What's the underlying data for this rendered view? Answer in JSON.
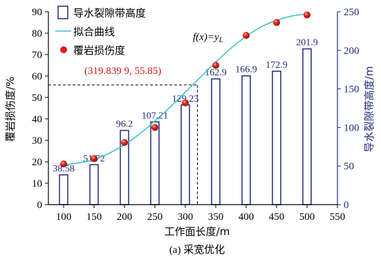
{
  "chart_data": {
    "type": "bar",
    "xlabel": "工作面长度/m",
    "ylabel_left": "覆岩损伤度/%",
    "ylabel_right": "导水裂隙带高度/m",
    "caption": "(a) 采宽优化",
    "x_ticks": [
      "100",
      "150",
      "200",
      "250",
      "300",
      "350",
      "400",
      "450",
      "500",
      "550"
    ],
    "xlim": [
      75,
      550
    ],
    "y_left_ticks": [
      "0",
      "10",
      "20",
      "30",
      "40",
      "50",
      "60",
      "70",
      "80",
      "90"
    ],
    "y_left_lim": [
      0,
      90
    ],
    "y_right_ticks": [
      "0",
      "50",
      "100",
      "150",
      "200",
      "250"
    ],
    "y_right_lim": [
      0,
      250
    ],
    "legend": {
      "position": "top-left",
      "items": [
        "导水裂隙带高度",
        "拟合曲线",
        "覆岩损伤度"
      ]
    },
    "series": [
      {
        "name": "导水裂隙带高度",
        "kind": "bar",
        "axis": "right",
        "color": "#1f2a7a",
        "x": [
          100,
          150,
          200,
          250,
          300,
          350,
          400,
          450,
          500
        ],
        "values": [
          38.58,
          51.72,
          96.2,
          107.21,
          129.23,
          162.9,
          166.9,
          172.9,
          201.9
        ],
        "labels": [
          "38.58",
          "51.72",
          "96.2",
          "107.21",
          "129.23",
          "162.9",
          "166.9",
          "172.9",
          "201.9"
        ]
      },
      {
        "name": "覆岩损伤度",
        "kind": "scatter",
        "axis": "left",
        "color": "#e0201c",
        "x": [
          100,
          150,
          200,
          250,
          300,
          350,
          400,
          450,
          500
        ],
        "values": [
          19.0,
          21.5,
          29.0,
          36.0,
          47.5,
          65.0,
          79.0,
          85.0,
          88.5
        ]
      },
      {
        "name": "拟合曲线",
        "kind": "line",
        "axis": "left",
        "color": "#3fc4c4",
        "x": [
          100,
          125,
          150,
          175,
          200,
          225,
          250,
          275,
          300,
          325,
          350,
          375,
          400,
          425,
          450,
          475,
          500
        ],
        "values": [
          18.5,
          19.5,
          21.0,
          24.0,
          28.0,
          33.0,
          39.0,
          45.5,
          52.5,
          59.5,
          66.5,
          73.0,
          78.5,
          83.0,
          86.0,
          88.0,
          89.0
        ]
      }
    ],
    "annotations": {
      "point_label": "(319.839 9, 55.85)",
      "point": [
        319.8399,
        55.85
      ],
      "fn_label": "f(x)=y_L"
    }
  }
}
